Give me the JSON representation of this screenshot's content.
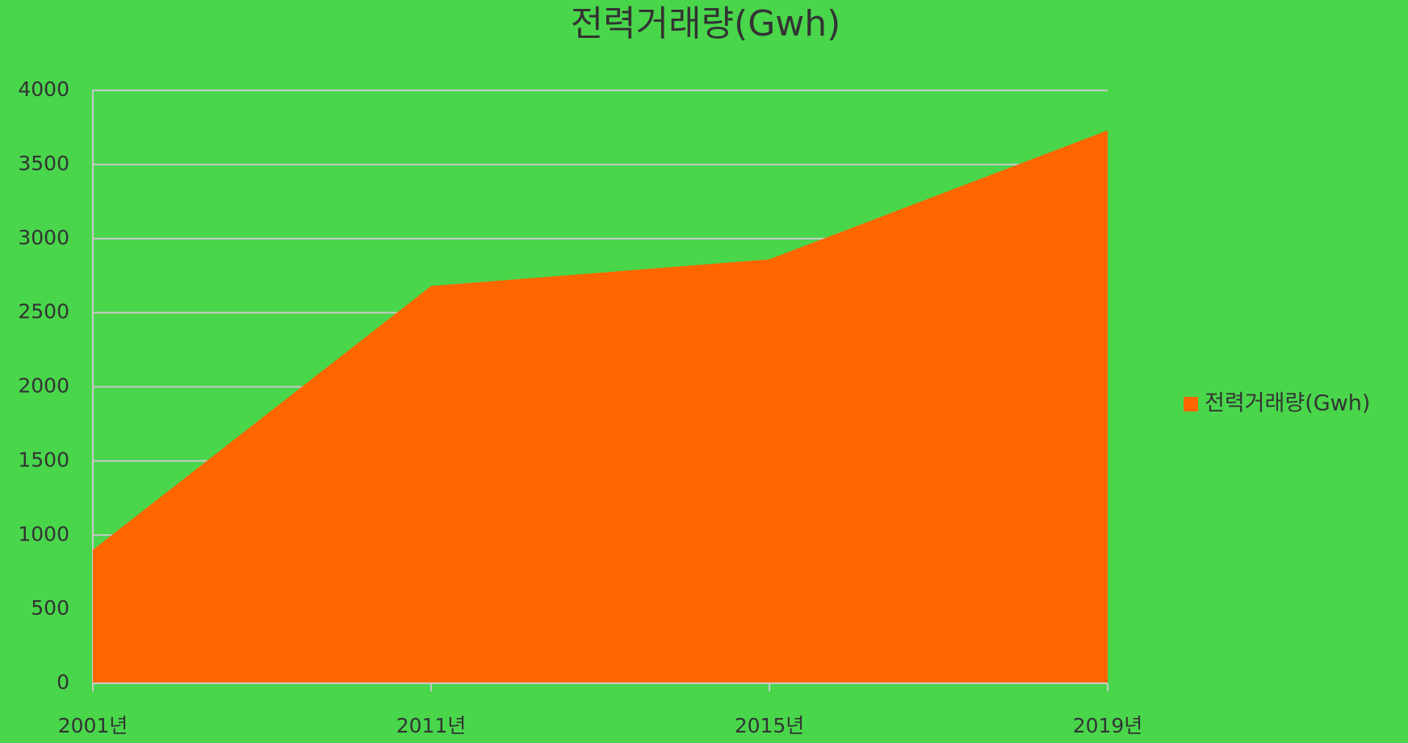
{
  "chart_data": {
    "type": "area",
    "title": "전력거래량(Gwh)",
    "categories": [
      "2001년",
      "2011년",
      "2015년",
      "2019년"
    ],
    "series": [
      {
        "name": "전력거래량(Gwh)",
        "color": "#ff6600",
        "values": [
          900,
          2680,
          2860,
          3730
        ]
      }
    ],
    "ylim": [
      0,
      4000
    ],
    "yticks": [
      0,
      500,
      1000,
      1500,
      2000,
      2500,
      3000,
      3500,
      4000
    ],
    "grid": true,
    "legend": "right"
  }
}
